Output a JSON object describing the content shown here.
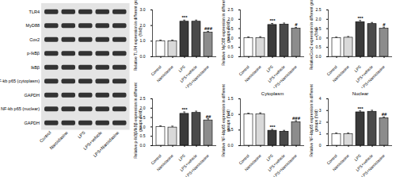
{
  "blot": {
    "rows": [
      "TLR4",
      "MyD88",
      "Cox2",
      "p-IkBβ",
      "IkBβ",
      "NF-kb p65 (cytoplasm)",
      "GAPDH",
      "NF-kb p65 (nuclear)",
      "GAPDH"
    ],
    "lane_labels": [
      "Control",
      "Narciclasine",
      "LPS",
      "LPS+vehicle",
      "LPS+Narciclasine"
    ]
  },
  "chart_data": [
    {
      "type": "bar",
      "y_label": "Relative TLR4 expression in different groups (fold)",
      "categories": [
        "Control",
        "Narciclasine",
        "LPS",
        "LPS+vehicle",
        "LPS+Narciclasine"
      ],
      "values": [
        1.0,
        1.0,
        2.25,
        2.25,
        1.55
      ],
      "errors": [
        0.07,
        0.07,
        0.1,
        0.1,
        0.08
      ],
      "annotations": [
        null,
        null,
        "***",
        null,
        "###"
      ],
      "colors": [
        "#ffffff",
        "#d9d9d9",
        "#3a3a3a",
        "#4a4a4a",
        "#8c8c8c"
      ],
      "ylim": [
        0,
        3
      ],
      "yticks": [
        {
          "value": 0,
          "label": "0.0"
        },
        {
          "value": 1,
          "label": "1.0"
        },
        {
          "value": 2,
          "label": "2.0"
        },
        {
          "value": 3,
          "label": "3.0"
        }
      ]
    },
    {
      "type": "bar",
      "y_label": "Relative MyD88 expression in different groups (fold)",
      "categories": [
        "Control",
        "Narciclasine",
        "LPS",
        "LPS+vehicle",
        "LPS+Narciclasine"
      ],
      "values": [
        1.0,
        1.0,
        1.7,
        1.72,
        1.5
      ],
      "errors": [
        0.06,
        0.07,
        0.08,
        0.08,
        0.07
      ],
      "annotations": [
        null,
        null,
        "***",
        null,
        "#"
      ],
      "colors": [
        "#ffffff",
        "#d9d9d9",
        "#3a3a3a",
        "#4a4a4a",
        "#8c8c8c"
      ],
      "ylim": [
        0,
        2.5
      ],
      "yticks": [
        {
          "value": 0,
          "label": "0.0"
        },
        0.5,
        {
          "value": 1,
          "label": "1.0"
        },
        1.5,
        {
          "value": 2,
          "label": "2.0"
        },
        2.5
      ]
    },
    {
      "type": "bar",
      "y_label": "RelativeCox2 expression in different groups (fold)",
      "categories": [
        "Control",
        "Narciclasine",
        "LPS",
        "LPS+vehicle",
        "LPS+Narciclasine"
      ],
      "values": [
        1.0,
        1.02,
        1.85,
        1.75,
        1.5
      ],
      "errors": [
        0.05,
        0.06,
        0.09,
        0.08,
        0.08
      ],
      "annotations": [
        null,
        null,
        "***",
        null,
        "#"
      ],
      "colors": [
        "#ffffff",
        "#d9d9d9",
        "#3a3a3a",
        "#4a4a4a",
        "#8c8c8c"
      ],
      "ylim": [
        0,
        2.5
      ],
      "yticks": [
        {
          "value": 0,
          "label": "0.0"
        },
        0.5,
        {
          "value": 1,
          "label": "1.0"
        },
        1.5,
        {
          "value": 2,
          "label": "2.0"
        },
        2.5
      ]
    },
    {
      "type": "bar",
      "y_label": "Relative p-IkBβ/IkBβ expression in different groups (fold)",
      "categories": [
        "Control",
        "Narciclasine",
        "LPS",
        "LPS+vehicle",
        "LPS+Narciclasine"
      ],
      "values": [
        1.0,
        0.97,
        1.7,
        1.75,
        1.35
      ],
      "errors": [
        0.06,
        0.07,
        0.1,
        0.09,
        0.08
      ],
      "annotations": [
        null,
        null,
        "***",
        null,
        "##"
      ],
      "colors": [
        "#ffffff",
        "#d9d9d9",
        "#3a3a3a",
        "#4a4a4a",
        "#8c8c8c"
      ],
      "ylim": [
        0,
        2.5
      ],
      "yticks": [
        {
          "value": 0,
          "label": "0.0"
        },
        0.5,
        {
          "value": 1,
          "label": "1.0"
        },
        1.5,
        {
          "value": 2,
          "label": "2.0"
        },
        2.5
      ]
    },
    {
      "type": "bar",
      "title": "Cytoplasm",
      "y_label": "Relative NF-kbp65 expression in different groups (fold)",
      "categories": [
        "Control",
        "Narciclasine",
        "LPS",
        "LPS+vehicle",
        "LPS+Narciclasine"
      ],
      "values": [
        1.0,
        1.0,
        0.48,
        0.45,
        0.75
      ],
      "errors": [
        0.04,
        0.05,
        0.04,
        0.04,
        0.05
      ],
      "annotations": [
        null,
        null,
        "***",
        null,
        "###"
      ],
      "colors": [
        "#ffffff",
        "#d9d9d9",
        "#3a3a3a",
        "#4a4a4a",
        "#8c8c8c"
      ],
      "ylim": [
        0,
        1.5
      ],
      "yticks": [
        {
          "value": 0,
          "label": "0.0"
        },
        0.5,
        {
          "value": 1,
          "label": "1.0"
        },
        1.5
      ]
    },
    {
      "type": "bar",
      "title": "Nuclear",
      "y_label": "Relative NF-kbp65 expression in different groups (fold)",
      "categories": [
        "Control",
        "Narciclasine",
        "LPS",
        "LPS+vehicle",
        "LPS+Narciclasine"
      ],
      "values": [
        1.0,
        1.0,
        2.85,
        2.9,
        2.35
      ],
      "errors": [
        0.08,
        0.08,
        0.12,
        0.12,
        0.1
      ],
      "annotations": [
        null,
        null,
        "***",
        null,
        "##"
      ],
      "colors": [
        "#ffffff",
        "#d9d9d9",
        "#3a3a3a",
        "#4a4a4a",
        "#8c8c8c"
      ],
      "ylim": [
        0,
        4
      ],
      "yticks": [
        0,
        1,
        2,
        3,
        4
      ]
    }
  ]
}
